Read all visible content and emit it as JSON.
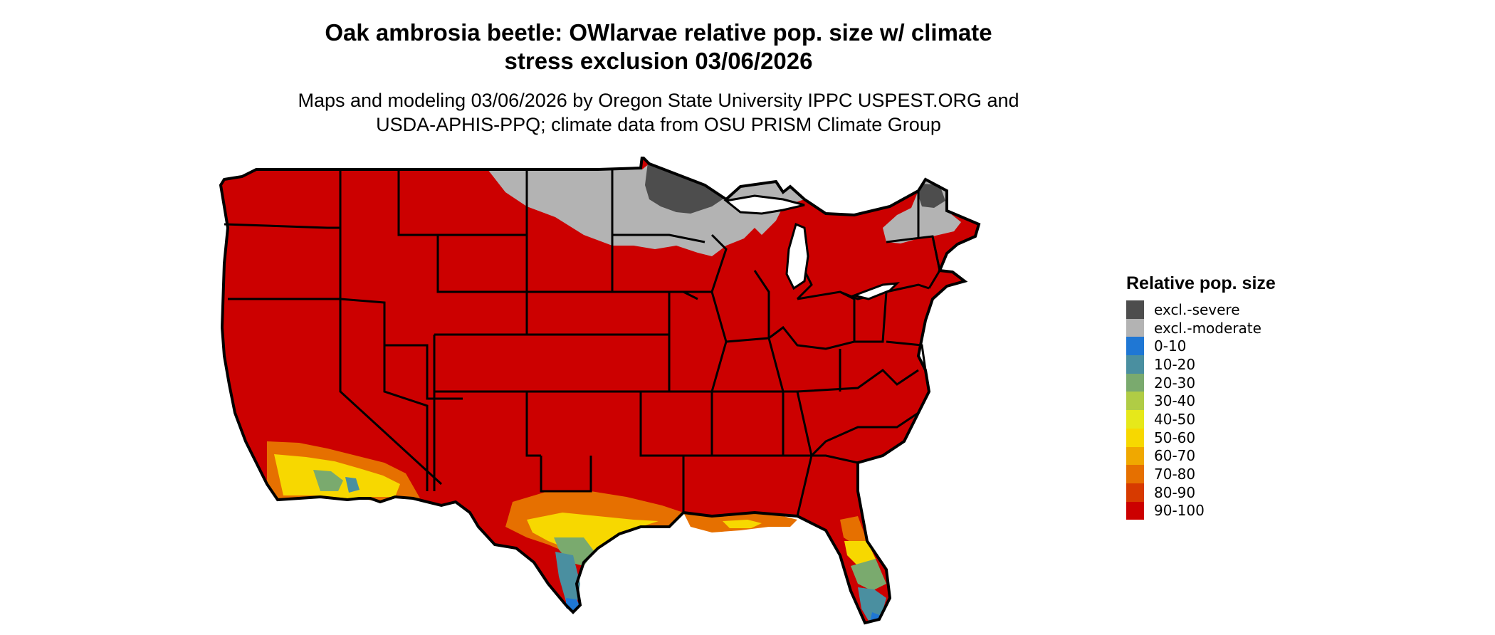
{
  "title": "Oak ambrosia beetle: OWlarvae relative pop. size w/ climate stress exclusion 03/06/2026",
  "title_line1": "Oak ambrosia beetle: OWlarvae relative pop. size w/ climate",
  "title_line2": "stress exclusion 03/06/2026",
  "subtitle_line1": "Maps and modeling 03/06/2026 by Oregon State University IPPC USPEST.ORG and",
  "subtitle_line2": "USDA-APHIS-PPQ; climate data from OSU PRISM Climate Group",
  "legend": {
    "title": "Relative pop. size",
    "items": [
      {
        "label": "excl.-severe",
        "color": "#4d4d4d"
      },
      {
        "label": "excl.-moderate",
        "color": "#b3b3b3"
      },
      {
        "label": "0-10",
        "color": "#1f77d4"
      },
      {
        "label": "10-20",
        "color": "#4a8fa0"
      },
      {
        "label": "20-30",
        "color": "#7aaa6e"
      },
      {
        "label": "30-40",
        "color": "#b0cc45"
      },
      {
        "label": "40-50",
        "color": "#e6e81a"
      },
      {
        "label": "50-60",
        "color": "#f7d800"
      },
      {
        "label": "60-70",
        "color": "#f0a800"
      },
      {
        "label": "70-80",
        "color": "#e67000"
      },
      {
        "label": "80-90",
        "color": "#d73a00"
      },
      {
        "label": "90-100",
        "color": "#cc0000"
      }
    ]
  },
  "map": {
    "region": "contiguous United States",
    "dominant_class": "90-100",
    "colors": {
      "base": "#cc0000",
      "severe": "#4d4d4d",
      "moderate": "#b3b3b3",
      "outline": "#000000"
    }
  }
}
